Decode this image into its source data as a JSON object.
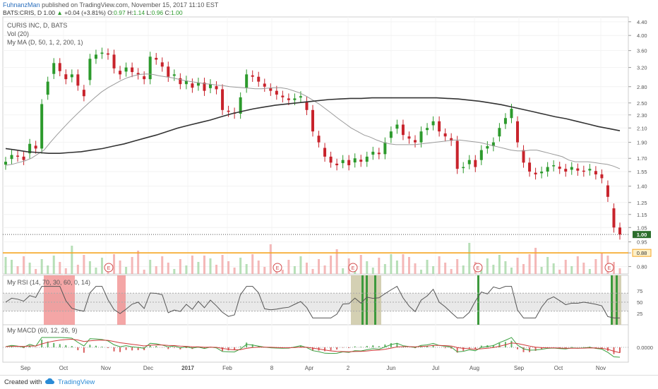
{
  "header": {
    "author": "FuhnanzMan",
    "published": "published on TradingView.com, November 15, 2017 11:10 EST",
    "symbol": "BATS:CRIS, D",
    "price": "1.00",
    "change": "+0.04 (+3.81%)",
    "open_label": "O:",
    "open": "0.97",
    "high_label": "H:",
    "high": "1.14",
    "low_label": "L:",
    "low": "0.96",
    "close_label": "C:",
    "close": "1.00"
  },
  "panels": {
    "price_title": "CURIS INC, D, BATS",
    "vol_label": "Vol (20)",
    "ma_label": "My MA (D, 50, 1, 2, 200, 1)",
    "rsi_label": "My RSI (14, 70, 30, 60, 0, 14)",
    "macd_label": "My MACD (60, 12, 26, 9)"
  },
  "footer": {
    "created": "Created with",
    "brand": "TradingView"
  },
  "colors": {
    "up": "#2c9a2c",
    "down": "#c8232c",
    "ma_fast": "#9a9a9a",
    "ma_slow": "#333333",
    "support": "#f5a623",
    "rsi_band": "#e9e9e9",
    "rsi_ob": "#f08080",
    "rsi_os_zone": "#c9c4a0",
    "rsi_os_bar": "#3d9a3d",
    "macd_line": "#3aa040",
    "macd_signal": "#d03a3a"
  },
  "chart_data": {
    "type": "candlestick",
    "price_axis": {
      "ticks": [
        "4.40",
        "4.00",
        "3.60",
        "3.20",
        "2.80",
        "2.50",
        "2.30",
        "2.10",
        "1.90",
        "1.70",
        "1.55",
        "1.40",
        "1.25",
        "1.15",
        "1.05",
        "0.95",
        "0.88",
        "0.80"
      ],
      "scale": "log",
      "last_price_tag": "1.00",
      "support_tag": "0.88"
    },
    "rsi_axis": {
      "ticks": [
        "75",
        "50",
        "25"
      ],
      "overbought": 70,
      "oversold": 30,
      "mid": 50
    },
    "macd_axis": {
      "ticks": [
        "0.0000"
      ]
    },
    "x_labels": [
      "Sep",
      "Oct",
      "Nov",
      "Dec",
      "2017",
      "Feb",
      "8",
      "Apr",
      "2",
      "Jun",
      "Jul",
      "Aug",
      "Sep",
      "Oct",
      "Nov"
    ],
    "earnings_markers": [
      "E",
      "E",
      "E",
      "E",
      "E"
    ],
    "closes": [
      1.66,
      1.74,
      1.72,
      1.68,
      1.88,
      1.82,
      2.48,
      2.9,
      3.3,
      3.12,
      2.95,
      3.05,
      2.82,
      2.62,
      3.4,
      3.5,
      3.55,
      3.5,
      3.18,
      3.05,
      3.2,
      3.1,
      3.05,
      2.95,
      3.45,
      3.38,
      3.22,
      3.0,
      3.05,
      2.85,
      2.92,
      2.78,
      2.88,
      2.72,
      2.85,
      2.75,
      2.38,
      2.35,
      2.32,
      2.6,
      3.05,
      3.0,
      2.9,
      2.8,
      2.72,
      2.65,
      2.6,
      2.55,
      2.58,
      2.62,
      2.38,
      2.05,
      1.9,
      1.72,
      1.65,
      1.62,
      1.68,
      1.62,
      1.7,
      1.66,
      1.72,
      1.78,
      1.75,
      1.9,
      2.05,
      2.15,
      2.0,
      1.95,
      1.9,
      2.05,
      2.1,
      2.2,
      2.05,
      1.98,
      1.92,
      1.58,
      1.6,
      1.68,
      1.6,
      1.8,
      1.85,
      1.9,
      2.1,
      2.25,
      2.4,
      1.9,
      1.65,
      1.55,
      1.52,
      1.55,
      1.6,
      1.62,
      1.58,
      1.55,
      1.6,
      1.56,
      1.55,
      1.58,
      1.52,
      1.48,
      1.3,
      1.05,
      1.0
    ],
    "ma50": [
      1.62,
      1.63,
      1.65,
      1.67,
      1.7,
      1.75,
      1.8,
      1.9,
      2.0,
      2.1,
      2.2,
      2.3,
      2.4,
      2.5,
      2.6,
      2.7,
      2.78,
      2.85,
      2.92,
      2.98,
      3.02,
      3.05,
      3.06,
      3.05,
      3.02,
      3.0,
      2.98,
      2.95,
      2.92,
      2.9,
      2.88,
      2.86,
      2.85,
      2.83,
      2.82,
      2.8,
      2.79,
      2.78,
      2.77,
      2.76,
      2.76,
      2.77,
      2.78,
      2.78,
      2.76,
      2.72,
      2.68,
      2.62,
      2.55,
      2.48,
      2.4,
      2.32,
      2.24,
      2.17,
      2.1,
      2.05,
      2.0,
      1.97,
      1.93,
      1.9,
      1.88,
      1.87,
      1.87,
      1.87,
      1.87,
      1.88,
      1.89,
      1.9,
      1.91,
      1.92,
      1.93,
      1.93,
      1.92,
      1.91,
      1.9,
      1.88,
      1.86,
      1.84,
      1.82,
      1.8,
      1.79,
      1.79,
      1.8,
      1.8,
      1.78,
      1.76,
      1.74,
      1.72,
      1.68,
      1.66,
      1.66,
      1.66,
      1.65,
      1.64,
      1.63,
      1.61,
      1.58
    ],
    "ma200": [
      1.82,
      1.8,
      1.78,
      1.77,
      1.76,
      1.76,
      1.77,
      1.78,
      1.8,
      1.82,
      1.85,
      1.88,
      1.92,
      1.96,
      2.0,
      2.05,
      2.1,
      2.14,
      2.18,
      2.22,
      2.27,
      2.32,
      2.36,
      2.4,
      2.43,
      2.46,
      2.48,
      2.5,
      2.52,
      2.54,
      2.56,
      2.57,
      2.58,
      2.58,
      2.59,
      2.59,
      2.59,
      2.59,
      2.59,
      2.59,
      2.59,
      2.58,
      2.57,
      2.55,
      2.53,
      2.5,
      2.47,
      2.43,
      2.39,
      2.35,
      2.31,
      2.27,
      2.24,
      2.2,
      2.16,
      2.12,
      2.09,
      2.06
    ],
    "support_level": 0.88
  }
}
